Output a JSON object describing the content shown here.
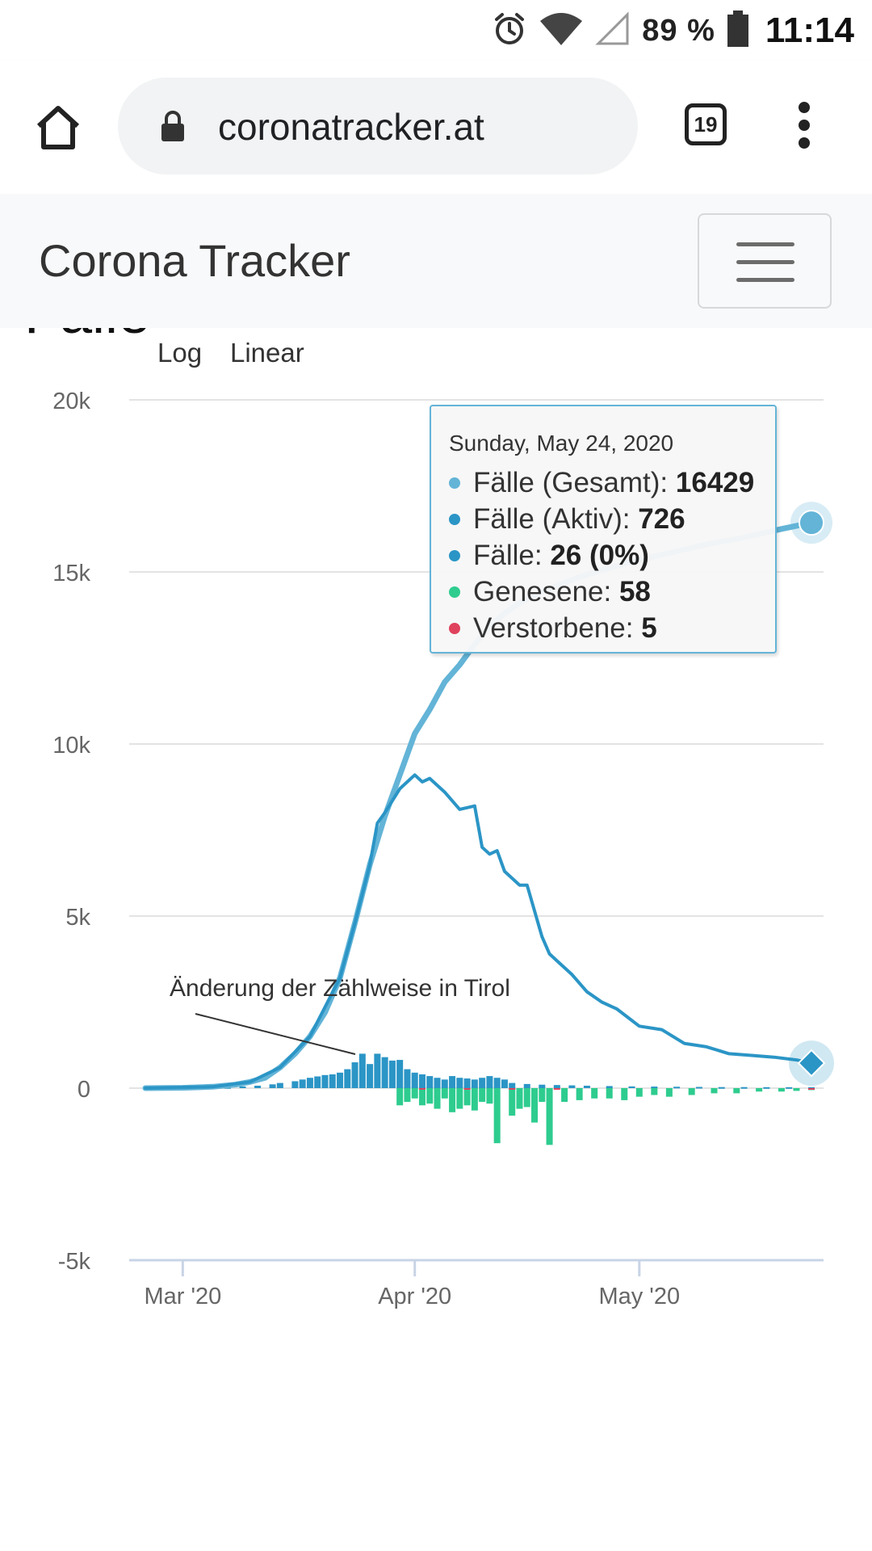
{
  "status_bar": {
    "battery": "89 %",
    "time": "11:14",
    "icons": [
      "alarm-icon",
      "wifi-icon",
      "signal-icon",
      "battery-icon"
    ]
  },
  "browser": {
    "url": "coronatracker.at",
    "tab_count": "19",
    "icons": [
      "home-icon",
      "lock-icon",
      "tabs-icon",
      "more-vert-icon"
    ]
  },
  "navbar": {
    "brand": "Corona Tracker",
    "toggler_icon": "hamburger-icon"
  },
  "section_cut": {
    "heading": "Fälle"
  },
  "chart_controls": {
    "log_label": "Log",
    "linear_label": "Linear"
  },
  "annotation": {
    "text": "Änderung der Zählweise in Tirol"
  },
  "tooltip": {
    "date": "Sunday, May 24, 2020",
    "rows": [
      {
        "label": "Fälle (Gesamt): ",
        "value": "16429",
        "color": "#63b4d7"
      },
      {
        "label": "Fälle (Aktiv): ",
        "value": "726",
        "color": "#2b95c6"
      },
      {
        "label": "Fälle: ",
        "value": "26 (0%)",
        "color": "#2b95c6"
      },
      {
        "label": "Genesene: ",
        "value": "58",
        "color": "#2ecc8f"
      },
      {
        "label": "Verstorbene: ",
        "value": "5",
        "color": "#e0425d"
      }
    ]
  },
  "chart_data": {
    "type": "line",
    "x_ticks": [
      "Mar '20",
      "Apr '20",
      "May '20"
    ],
    "y_ticks": [
      "20k",
      "15k",
      "10k",
      "5k",
      "0",
      "-5k"
    ],
    "ylim": [
      -5000,
      20000
    ],
    "xlim": [
      "2020-02-25",
      "2020-05-24"
    ],
    "grid": true,
    "colors": {
      "total": "#63b4d7",
      "active": "#2b95c6",
      "new": "#2b95c6",
      "recovered": "#2ecc8f",
      "deaths": "#e0425d"
    },
    "series": [
      {
        "name": "Fälle (Gesamt)",
        "x": [
          "2020-02-25",
          "2020-03-01",
          "2020-03-05",
          "2020-03-08",
          "2020-03-10",
          "2020-03-12",
          "2020-03-14",
          "2020-03-16",
          "2020-03-18",
          "2020-03-20",
          "2020-03-22",
          "2020-03-24",
          "2020-03-26",
          "2020-03-28",
          "2020-03-30",
          "2020-04-01",
          "2020-04-03",
          "2020-04-05",
          "2020-04-07",
          "2020-04-09",
          "2020-04-11",
          "2020-04-13",
          "2020-04-15",
          "2020-04-17",
          "2020-04-20",
          "2020-04-23",
          "2020-04-26",
          "2020-04-30",
          "2020-05-05",
          "2020-05-10",
          "2020-05-15",
          "2020-05-20",
          "2020-05-24"
        ],
        "values": [
          0,
          10,
          40,
          100,
          180,
          300,
          600,
          1000,
          1500,
          2200,
          3200,
          4800,
          6500,
          7900,
          9100,
          10300,
          11000,
          11800,
          12300,
          12900,
          13400,
          13800,
          14100,
          14300,
          14600,
          14850,
          15050,
          15300,
          15550,
          15800,
          16000,
          16250,
          16429
        ]
      },
      {
        "name": "Fälle (Aktiv)",
        "x": [
          "2020-02-25",
          "2020-03-05",
          "2020-03-10",
          "2020-03-14",
          "2020-03-18",
          "2020-03-22",
          "2020-03-24",
          "2020-03-26",
          "2020-03-27",
          "2020-03-28",
          "2020-03-30",
          "2020-04-01",
          "2020-04-02",
          "2020-04-03",
          "2020-04-05",
          "2020-04-07",
          "2020-04-09",
          "2020-04-10",
          "2020-04-11",
          "2020-04-12",
          "2020-04-13",
          "2020-04-15",
          "2020-04-16",
          "2020-04-18",
          "2020-04-19",
          "2020-04-20",
          "2020-04-22",
          "2020-04-24",
          "2020-04-26",
          "2020-04-28",
          "2020-05-01",
          "2020-05-04",
          "2020-05-07",
          "2020-05-10",
          "2020-05-13",
          "2020-05-16",
          "2020-05-19",
          "2020-05-22",
          "2020-05-24"
        ],
        "values": [
          0,
          40,
          180,
          600,
          1500,
          3200,
          4800,
          6500,
          7700,
          8000,
          8700,
          9100,
          8900,
          9000,
          8600,
          8100,
          8200,
          7000,
          6800,
          6900,
          6300,
          5900,
          5900,
          4400,
          3900,
          3700,
          3300,
          2800,
          2500,
          2300,
          1800,
          1700,
          1300,
          1200,
          1000,
          950,
          900,
          820,
          726
        ]
      },
      {
        "name": "Fälle",
        "x": [
          "2020-03-05",
          "2020-03-07",
          "2020-03-09",
          "2020-03-11",
          "2020-03-13",
          "2020-03-14",
          "2020-03-16",
          "2020-03-17",
          "2020-03-18",
          "2020-03-19",
          "2020-03-20",
          "2020-03-21",
          "2020-03-22",
          "2020-03-23",
          "2020-03-24",
          "2020-03-25",
          "2020-03-26",
          "2020-03-27",
          "2020-03-28",
          "2020-03-29",
          "2020-03-30",
          "2020-03-31",
          "2020-04-01",
          "2020-04-02",
          "2020-04-03",
          "2020-04-04",
          "2020-04-05",
          "2020-04-06",
          "2020-04-07",
          "2020-04-08",
          "2020-04-09",
          "2020-04-10",
          "2020-04-11",
          "2020-04-12",
          "2020-04-13",
          "2020-04-14",
          "2020-04-16",
          "2020-04-18",
          "2020-04-20",
          "2020-04-22",
          "2020-04-24",
          "2020-04-27",
          "2020-04-30",
          "2020-05-03",
          "2020-05-06",
          "2020-05-09",
          "2020-05-12",
          "2020-05-15",
          "2020-05-18",
          "2020-05-21",
          "2020-05-24"
        ],
        "values": [
          20,
          30,
          50,
          70,
          110,
          150,
          200,
          250,
          300,
          340,
          380,
          400,
          450,
          550,
          750,
          1000,
          700,
          1000,
          900,
          800,
          820,
          550,
          450,
          400,
          350,
          300,
          250,
          350,
          300,
          280,
          250,
          300,
          350,
          300,
          250,
          150,
          120,
          100,
          90,
          80,
          70,
          60,
          50,
          45,
          40,
          35,
          30,
          30,
          28,
          27,
          26
        ]
      },
      {
        "name": "Genesene",
        "x": [
          "2020-03-30",
          "2020-03-31",
          "2020-04-01",
          "2020-04-02",
          "2020-04-03",
          "2020-04-04",
          "2020-04-05",
          "2020-04-06",
          "2020-04-07",
          "2020-04-08",
          "2020-04-09",
          "2020-04-10",
          "2020-04-11",
          "2020-04-12",
          "2020-04-14",
          "2020-04-15",
          "2020-04-16",
          "2020-04-17",
          "2020-04-18",
          "2020-04-19",
          "2020-04-21",
          "2020-04-23",
          "2020-04-25",
          "2020-04-27",
          "2020-04-29",
          "2020-05-01",
          "2020-05-03",
          "2020-05-05",
          "2020-05-08",
          "2020-05-11",
          "2020-05-14",
          "2020-05-17",
          "2020-05-20",
          "2020-05-22",
          "2020-05-24"
        ],
        "values": [
          -500,
          -400,
          -300,
          -500,
          -450,
          -600,
          -300,
          -700,
          -600,
          -500,
          -650,
          -400,
          -450,
          -1600,
          -800,
          -600,
          -550,
          -1000,
          -400,
          -1650,
          -400,
          -350,
          -300,
          -300,
          -350,
          -250,
          -200,
          -250,
          -200,
          -150,
          -150,
          -100,
          -100,
          -80,
          -58
        ]
      },
      {
        "name": "Verstorbene",
        "x": [
          "2020-04-02",
          "2020-04-08",
          "2020-04-14",
          "2020-04-20",
          "2020-05-24"
        ],
        "values": [
          -20,
          -25,
          -20,
          -15,
          -5
        ]
      }
    ]
  }
}
